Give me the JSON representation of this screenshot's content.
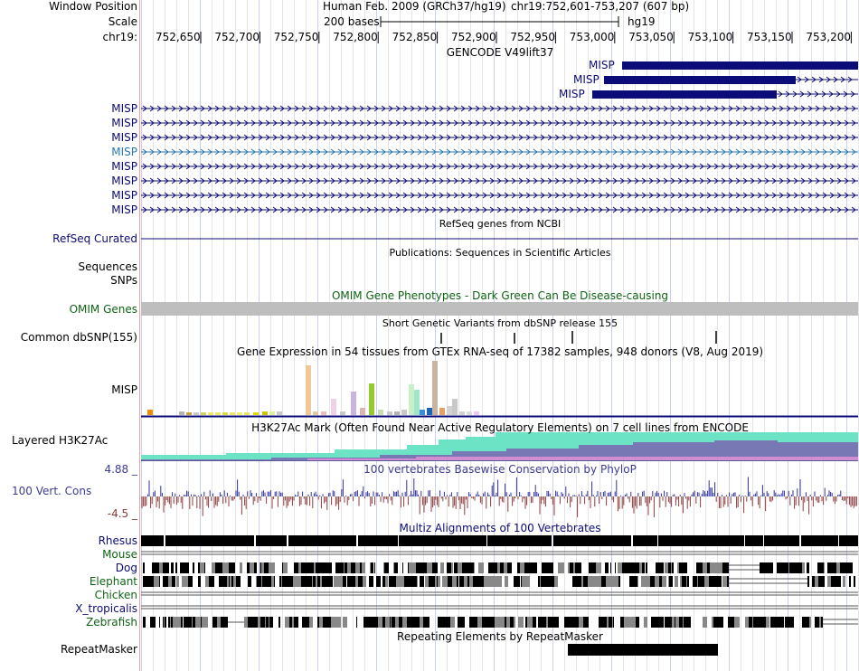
{
  "header": {
    "window_position_label": "Window Position",
    "scale_label": "Scale",
    "chrom_label": "chr19:",
    "assembly": "Human Feb. 2009 (GRCh37/hg19)",
    "position": "chr19:752,601-753,207 (607 bp)",
    "scale_text": "200 bases",
    "db": "hg19",
    "ruler_ticks": [
      "752,650",
      "752,700",
      "752,750",
      "752,800",
      "752,850",
      "752,900",
      "752,950",
      "753,000",
      "753,050",
      "753,100",
      "753,150",
      "753,200"
    ]
  },
  "tracks": {
    "gencode": {
      "title": "GENCODE V49lift37",
      "transcripts": [
        "MISP",
        "MISP",
        "MISP",
        "MISP",
        "MISP",
        "MISP",
        "MISP",
        "MISP",
        "MISP",
        "MISP",
        "MISP"
      ]
    },
    "refseq": {
      "title": "RefSeq genes from NCBI",
      "label": "RefSeq Curated"
    },
    "publications": {
      "title": "Publications: Sequences in Scientific Articles",
      "label1": "Sequences",
      "label2": "SNPs"
    },
    "omim": {
      "title": "OMIM Gene Phenotypes - Dark Green Can Be Disease-causing",
      "label": "OMIM Genes"
    },
    "dbsnp": {
      "title": "Short Genetic Variants from dbSNP release 155",
      "label": "Common dbSNP(155)"
    },
    "gtex": {
      "title": "Gene Expression in 54 tissues from GTEx RNA-seq of 17382 samples, 948 donors (V8, Aug 2019)",
      "label": "MISP"
    },
    "h3k27ac": {
      "title": "H3K27Ac Mark (Often Found Near Active Regulatory Elements) on 7 cell lines from ENCODE",
      "label": "Layered H3K27Ac"
    },
    "conservation": {
      "title": "100 vertebrates Basewise Conservation by PhyloP",
      "label": "100 Vert. Cons",
      "max": "4.88 _",
      "min": "-4.5 _"
    },
    "multiz": {
      "title": "Multiz Alignments of 100 Vertebrates",
      "species": [
        "Rhesus",
        "Mouse",
        "Dog",
        "Elephant",
        "Chicken",
        "X_tropicalis",
        "Zebrafish"
      ]
    },
    "repeatmasker": {
      "title": "Repeating Elements by RepeatMasker",
      "label": "RepeatMasker"
    }
  },
  "colors": {
    "gene": "#0c0c78",
    "highlight_gene": "#2878b4",
    "omim": "#bebebe",
    "label_blue": "#3c3c96",
    "label_green": "#0f6414"
  }
}
